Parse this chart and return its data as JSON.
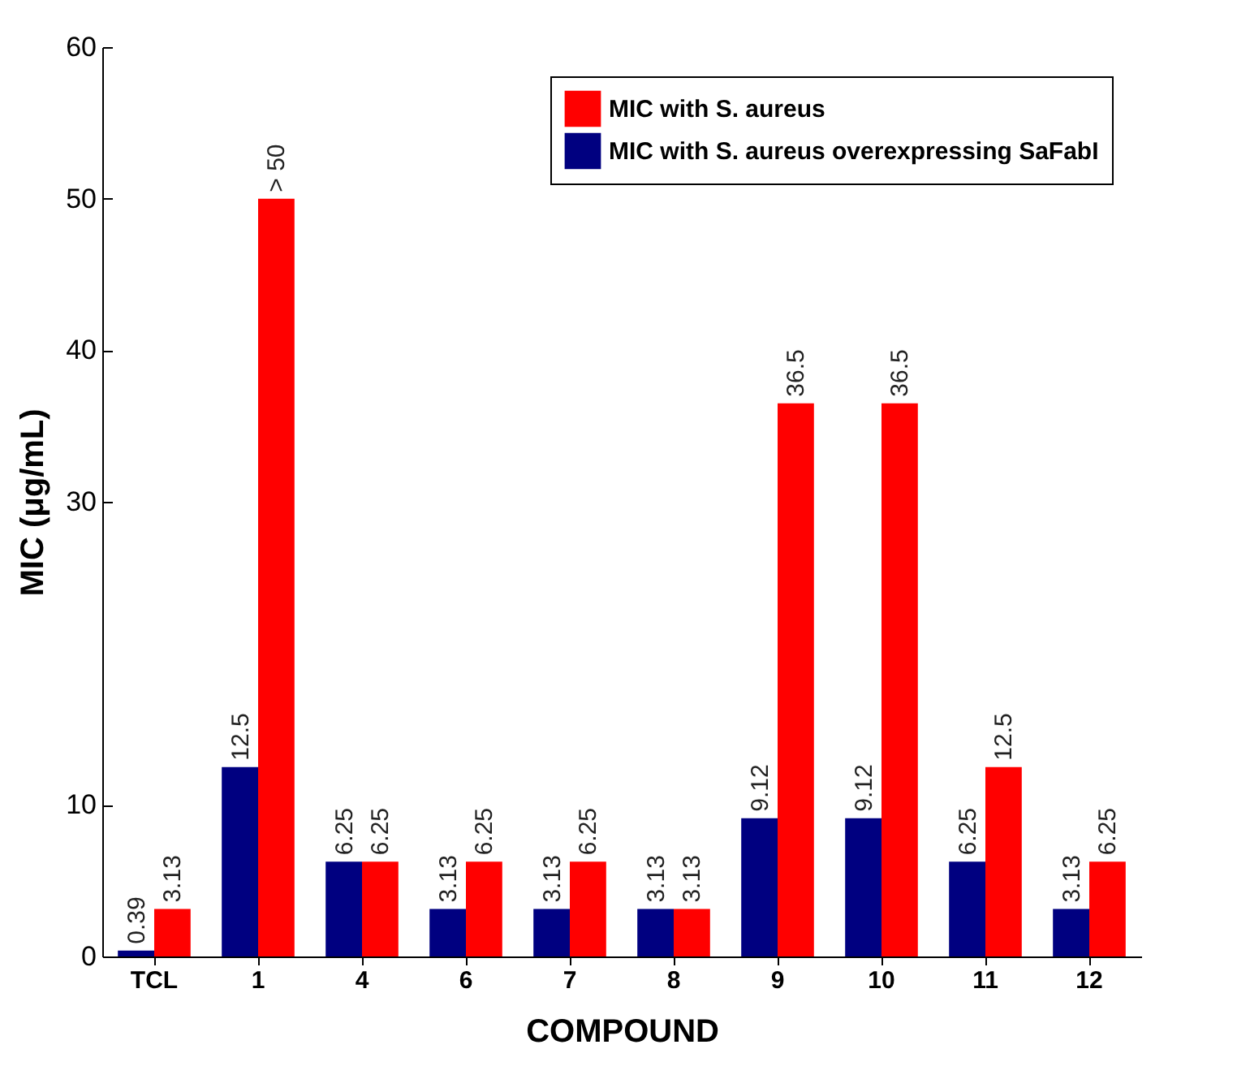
{
  "chart_data": {
    "type": "bar",
    "xlabel": "COMPOUND",
    "ylabel": "MIC (μg/mL)",
    "categories": [
      "TCL",
      "1",
      "4",
      "6",
      "7",
      "8",
      "9",
      "10",
      "11",
      "12"
    ],
    "series": [
      {
        "name": "MIC with S. aureus overexpressing SaFabI",
        "color": "#000080",
        "values": [
          0.39,
          12.5,
          6.25,
          3.13,
          3.13,
          3.13,
          9.12,
          9.12,
          6.25,
          3.13
        ],
        "value_labels": [
          "0.39",
          "12.5",
          "6.25",
          "3.13",
          "3.13",
          "3.13",
          "9.12",
          "9.12",
          "6.25",
          "3.13"
        ]
      },
      {
        "name": "MIC with S. aureus",
        "color": "#ff0000",
        "values": [
          3.13,
          50,
          6.25,
          6.25,
          6.25,
          3.13,
          36.5,
          36.5,
          12.5,
          6.25
        ],
        "value_labels": [
          "3.13",
          "> 50",
          "6.25",
          "6.25",
          "6.25",
          "3.13",
          "36.5",
          "36.5",
          "12.5",
          "6.25"
        ]
      }
    ],
    "ylim": [
      0,
      60
    ],
    "yticks": [
      0,
      10,
      30,
      40,
      50,
      60
    ],
    "legend": "top right",
    "grid": false
  }
}
